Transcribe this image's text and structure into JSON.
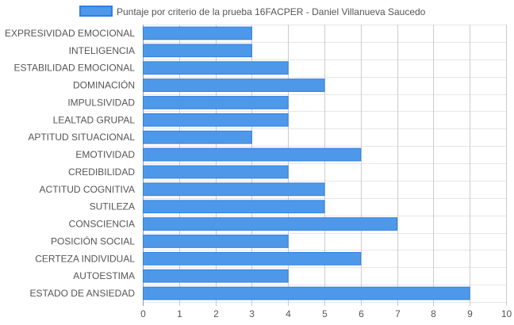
{
  "chart_data": {
    "type": "bar",
    "orientation": "horizontal",
    "categories": [
      "EXPRESIVIDAD EMOCIONAL",
      "INTELIGENCIA",
      "ESTABILIDAD EMOCIONAL",
      "DOMINACIÓN",
      "IMPULSIVIDAD",
      "LEALTAD GRUPAL",
      "APTITUD SITUACIONAL",
      "EMOTIVIDAD",
      "CREDIBILIDAD",
      "ACTITUD COGNITIVA",
      "SUTILEZA",
      "CONSCIENCIA",
      "POSICIÓN SOCIAL",
      "CERTEZA INDIVIDUAL",
      "AUTOESTIMA",
      "ESTADO DE ANSIEDAD"
    ],
    "series": [
      {
        "name": "Puntaje por criterio de la prueba 16FACPER - Daniel Villanueva Saucedo",
        "values": [
          3,
          3,
          4,
          5,
          4,
          4,
          3,
          6,
          4,
          5,
          5,
          7,
          4,
          6,
          4,
          9
        ],
        "color": "#4e98ea",
        "border_color": "#2f7fe0"
      }
    ],
    "xlim": [
      0,
      10
    ],
    "x_ticks": [
      "0",
      "1",
      "2",
      "3",
      "4",
      "5",
      "6",
      "7",
      "8",
      "9",
      "10"
    ],
    "grid": true,
    "legend_position": "top"
  }
}
